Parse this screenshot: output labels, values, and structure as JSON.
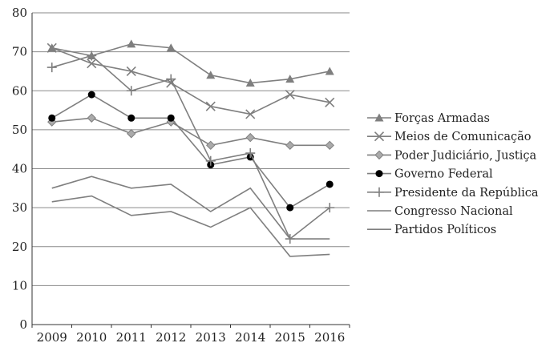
{
  "chart_data": {
    "type": "line",
    "title": "",
    "xlabel": "",
    "ylabel": "",
    "x": [
      "2009",
      "2010",
      "2011",
      "2012",
      "2013",
      "2014",
      "2015",
      "2016"
    ],
    "ylim": [
      0,
      80
    ],
    "yticks": [
      0,
      10,
      20,
      30,
      40,
      50,
      60,
      70,
      80
    ],
    "grid": "horizontal",
    "legend_position": "right",
    "line_color": "#7f7f7f",
    "series": [
      {
        "name": "Forças Armadas",
        "marker": "triangle",
        "values": [
          71,
          69,
          72,
          71,
          64,
          62,
          63,
          65
        ]
      },
      {
        "name": "Meios de Comunicação",
        "marker": "x",
        "values": [
          71,
          67,
          65,
          62,
          56,
          54,
          59,
          57
        ]
      },
      {
        "name": "Poder Judiciário, Justiça",
        "marker": "diamond",
        "values": [
          52,
          53,
          49,
          52,
          46,
          48,
          46,
          46
        ]
      },
      {
        "name": "Governo Federal",
        "marker": "circle",
        "values": [
          53,
          59,
          53,
          53,
          41,
          43,
          30,
          36
        ]
      },
      {
        "name": "Presidente da República",
        "marker": "plus",
        "values": [
          66,
          69,
          60,
          63,
          42,
          44,
          22,
          30
        ]
      },
      {
        "name": "Congresso Nacional",
        "marker": "none",
        "values": [
          35,
          38,
          35,
          36,
          29,
          35,
          22,
          22
        ]
      },
      {
        "name": "Partidos Políticos",
        "marker": "none",
        "values": [
          31.5,
          33,
          28,
          29,
          25,
          30,
          17.5,
          18
        ]
      }
    ]
  }
}
